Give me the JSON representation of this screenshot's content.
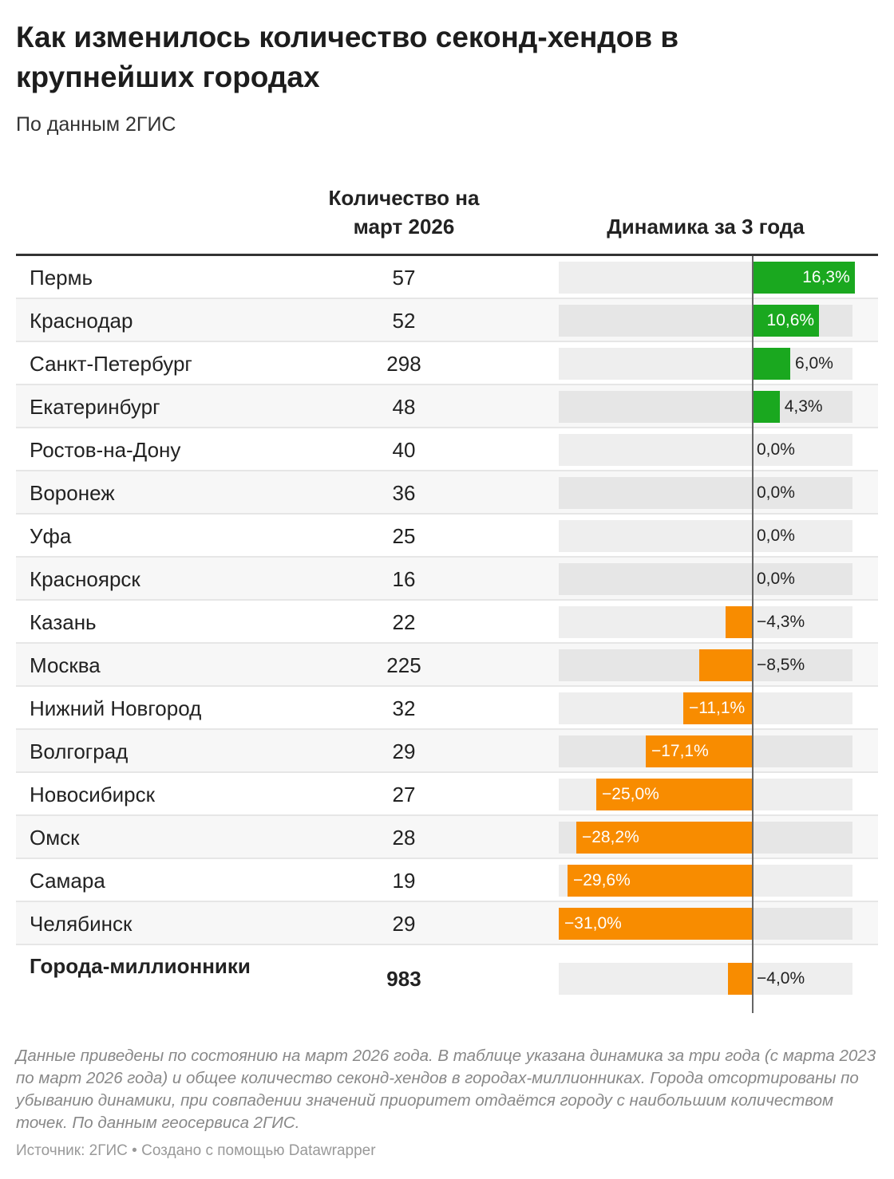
{
  "title": "Как изменилось количество секонд-хендов в крупнейших городах",
  "subtitle": "По данным 2ГИС",
  "columns": {
    "count": "Количество на март 2026",
    "change": "Динамика за 3 года"
  },
  "colors": {
    "positive": "#1aa81f",
    "negative": "#f88c00",
    "track": "#eeeeee",
    "zero_line": "#666666"
  },
  "chart_data": {
    "type": "table",
    "title": "Как изменилось количество секонд-хендов в крупнейших городах",
    "subtitle": "По данным 2ГИС",
    "columns": [
      "",
      "Количество на март 2026",
      "Динамика за 3 года"
    ],
    "bar_range": [
      -31.0,
      16.3
    ],
    "rows": [
      {
        "city": "Пермь",
        "count": "57",
        "change": 16.3,
        "label": "16,3%"
      },
      {
        "city": "Краснодар",
        "count": "52",
        "change": 10.6,
        "label": "10,6%"
      },
      {
        "city": "Санкт-Петербург",
        "count": "298",
        "change": 6.0,
        "label": "6,0%"
      },
      {
        "city": "Екатеринбург",
        "count": "48",
        "change": 4.3,
        "label": "4,3%"
      },
      {
        "city": "Ростов-на-Дону",
        "count": "40",
        "change": 0.0,
        "label": "0,0%"
      },
      {
        "city": "Воронеж",
        "count": "36",
        "change": 0.0,
        "label": "0,0%"
      },
      {
        "city": "Уфа",
        "count": "25",
        "change": 0.0,
        "label": "0,0%"
      },
      {
        "city": "Красноярск",
        "count": "16",
        "change": 0.0,
        "label": "0,0%"
      },
      {
        "city": "Казань",
        "count": "22",
        "change": -4.3,
        "label": "−4,3%"
      },
      {
        "city": "Москва",
        "count": "225",
        "change": -8.5,
        "label": "−8,5%"
      },
      {
        "city": "Нижний Новгород",
        "count": "32",
        "change": -11.1,
        "label": "−11,1%"
      },
      {
        "city": "Волгоград",
        "count": "29",
        "change": -17.1,
        "label": "−17,1%"
      },
      {
        "city": "Новосибирск",
        "count": "27",
        "change": -25.0,
        "label": "−25,0%"
      },
      {
        "city": "Омск",
        "count": "28",
        "change": -28.2,
        "label": "−28,2%"
      },
      {
        "city": "Самара",
        "count": "19",
        "change": -29.6,
        "label": "−29,6%"
      },
      {
        "city": "Челябинск",
        "count": "29",
        "change": -31.0,
        "label": "−31,0%"
      }
    ],
    "total": {
      "city": "Города-миллионники",
      "count": "983",
      "change": -4.0,
      "label": "−4,0%"
    }
  },
  "notes": "Данные приведены по состоянию на март 2026 года. В таблице указана динамика за три года (с марта 2023 по март 2026 года) и общее количество секонд-хендов в городах-миллионниках. Города отсортированы по убыванию динамики, при совпадении значений приоритет отдаётся городу с наибольшим количеством точек. По данным геосервиса 2ГИС.",
  "source": "Источник: 2ГИС • Создано с помощью Datawrapper"
}
